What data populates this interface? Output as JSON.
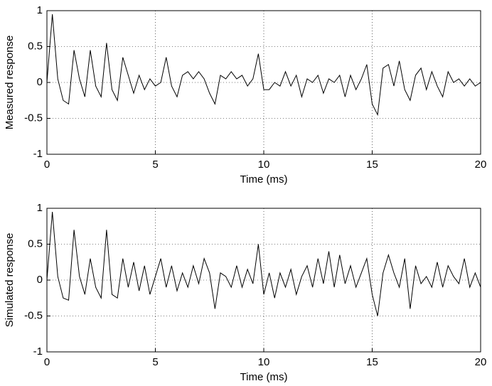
{
  "chart_data": [
    {
      "type": "line",
      "ylabel": "Measured response",
      "xlabel": "Time (ms)",
      "color": "#000000",
      "grid": true,
      "xlim": [
        0,
        20
      ],
      "ylim": [
        -1,
        1
      ],
      "xticks": [
        0,
        5,
        10,
        15,
        20
      ],
      "yticks": [
        -1,
        -0.5,
        0,
        0.5,
        1
      ],
      "x": [
        0,
        0.25,
        0.5,
        0.75,
        1,
        1.25,
        1.5,
        1.75,
        2,
        2.25,
        2.5,
        2.75,
        3,
        3.25,
        3.5,
        3.75,
        4,
        4.25,
        4.5,
        4.75,
        5,
        5.25,
        5.5,
        5.75,
        6,
        6.25,
        6.5,
        6.75,
        7,
        7.25,
        7.5,
        7.75,
        8,
        8.25,
        8.5,
        8.75,
        9,
        9.25,
        9.5,
        9.75,
        10,
        10.25,
        10.5,
        10.75,
        11,
        11.25,
        11.5,
        11.75,
        12,
        12.25,
        12.5,
        12.75,
        13,
        13.25,
        13.5,
        13.75,
        14,
        14.25,
        14.5,
        14.75,
        15,
        15.25,
        15.5,
        15.75,
        16,
        16.25,
        16.5,
        16.75,
        17,
        17.25,
        17.5,
        17.75,
        18,
        18.25,
        18.5,
        18.75,
        19,
        19.25,
        19.5,
        19.75,
        20
      ],
      "values": [
        0,
        0.95,
        0.05,
        -0.25,
        -0.3,
        0.45,
        0.05,
        -0.2,
        0.45,
        -0.05,
        -0.2,
        0.55,
        -0.1,
        -0.25,
        0.35,
        0.1,
        -0.15,
        0.1,
        -0.1,
        0.05,
        -0.05,
        0,
        0.35,
        -0.05,
        -0.2,
        0.1,
        0.15,
        0.05,
        0.15,
        0.05,
        -0.15,
        -0.3,
        0.1,
        0.05,
        0.15,
        0.05,
        0.1,
        -0.05,
        0.05,
        0.4,
        -0.1,
        -0.1,
        0,
        -0.05,
        0.15,
        -0.05,
        0.1,
        -0.2,
        0.05,
        0,
        0.1,
        -0.15,
        0.05,
        0,
        0.1,
        -0.2,
        0.1,
        -0.1,
        0.05,
        0.25,
        -0.3,
        -0.45,
        0.2,
        0.25,
        -0.05,
        0.3,
        -0.1,
        -0.25,
        0.1,
        0.2,
        -0.1,
        0.15,
        -0.05,
        -0.2,
        0.15,
        0,
        0.05,
        -0.05,
        0.05,
        -0.05,
        0
      ]
    },
    {
      "type": "line",
      "ylabel": "Simulated response",
      "xlabel": "Time (ms)",
      "color": "#000000",
      "grid": true,
      "xlim": [
        0,
        20
      ],
      "ylim": [
        -1,
        1
      ],
      "xticks": [
        0,
        5,
        10,
        15,
        20
      ],
      "yticks": [
        -1,
        -0.5,
        0,
        0.5,
        1
      ],
      "x": [
        0,
        0.25,
        0.5,
        0.75,
        1,
        1.25,
        1.5,
        1.75,
        2,
        2.25,
        2.5,
        2.75,
        3,
        3.25,
        3.5,
        3.75,
        4,
        4.25,
        4.5,
        4.75,
        5,
        5.25,
        5.5,
        5.75,
        6,
        6.25,
        6.5,
        6.75,
        7,
        7.25,
        7.5,
        7.75,
        8,
        8.25,
        8.5,
        8.75,
        9,
        9.25,
        9.5,
        9.75,
        10,
        10.25,
        10.5,
        10.75,
        11,
        11.25,
        11.5,
        11.75,
        12,
        12.25,
        12.5,
        12.75,
        13,
        13.25,
        13.5,
        13.75,
        14,
        14.25,
        14.5,
        14.75,
        15,
        15.25,
        15.5,
        15.75,
        16,
        16.25,
        16.5,
        16.75,
        17,
        17.25,
        17.5,
        17.75,
        18,
        18.25,
        18.5,
        18.75,
        19,
        19.25,
        19.5,
        19.75,
        20
      ],
      "values": [
        0,
        0.95,
        0.05,
        -0.25,
        -0.28,
        0.7,
        0.05,
        -0.2,
        0.3,
        -0.1,
        -0.25,
        0.7,
        -0.2,
        -0.25,
        0.3,
        -0.1,
        0.25,
        -0.15,
        0.2,
        -0.2,
        0.05,
        0.3,
        -0.1,
        0.2,
        -0.15,
        0.1,
        -0.1,
        0.2,
        -0.05,
        0.3,
        0.1,
        -0.4,
        0.1,
        0.05,
        -0.1,
        0.2,
        -0.1,
        0.15,
        -0.05,
        0.5,
        -0.2,
        0.1,
        -0.25,
        0.1,
        -0.1,
        0.15,
        -0.2,
        0.05,
        0.2,
        -0.1,
        0.3,
        -0.05,
        0.4,
        -0.1,
        0.35,
        -0.05,
        0.2,
        -0.1,
        0.1,
        0.3,
        -0.2,
        -0.5,
        0.1,
        0.35,
        0.1,
        -0.1,
        0.3,
        -0.4,
        0.2,
        -0.05,
        0.05,
        -0.1,
        0.25,
        -0.1,
        0.2,
        0.05,
        -0.05,
        0.3,
        -0.1,
        0.1,
        -0.1
      ]
    }
  ]
}
